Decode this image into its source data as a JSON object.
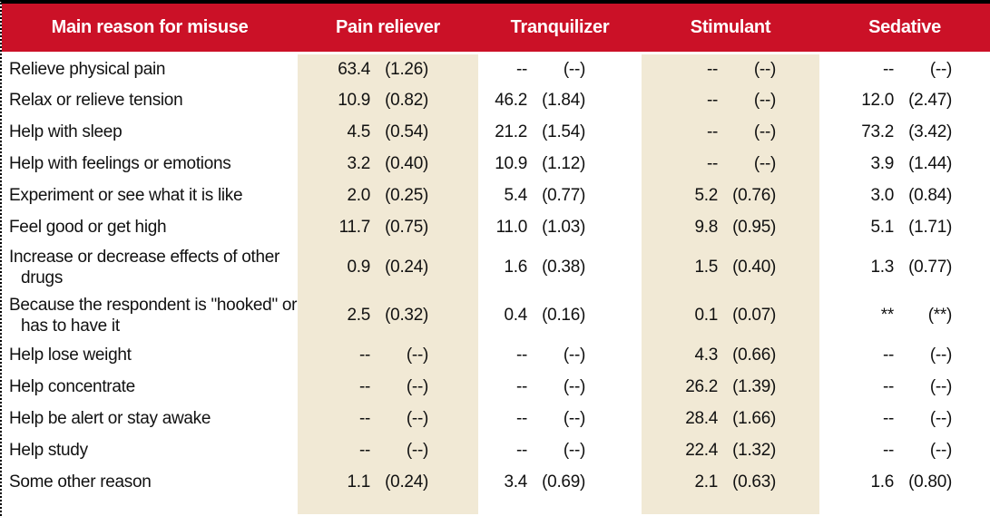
{
  "table": {
    "corner_header": "Main reason for misuse",
    "columns": [
      "Pain reliever",
      "Tranquilizer",
      "Stimulant",
      "Sedative"
    ],
    "missing_marker": "--",
    "missing_se_marker": "(--)",
    "suppressed_marker": "**",
    "suppressed_se_marker": "(**)",
    "rows": [
      {
        "label": "Relieve physical pain",
        "values": [
          {
            "est": "63.4",
            "se": "(1.26)"
          },
          {
            "est": "--",
            "se": "(--)"
          },
          {
            "est": "--",
            "se": "(--)"
          },
          {
            "est": "--",
            "se": "(--)"
          }
        ]
      },
      {
        "label": "Relax or relieve tension",
        "values": [
          {
            "est": "10.9",
            "se": "(0.82)"
          },
          {
            "est": "46.2",
            "se": "(1.84)"
          },
          {
            "est": "--",
            "se": "(--)"
          },
          {
            "est": "12.0",
            "se": "(2.47)"
          }
        ]
      },
      {
        "label": "Help with sleep",
        "values": [
          {
            "est": "4.5",
            "se": "(0.54)"
          },
          {
            "est": "21.2",
            "se": "(1.54)"
          },
          {
            "est": "--",
            "se": "(--)"
          },
          {
            "est": "73.2",
            "se": "(3.42)"
          }
        ]
      },
      {
        "label": "Help with feelings or emotions",
        "values": [
          {
            "est": "3.2",
            "se": "(0.40)"
          },
          {
            "est": "10.9",
            "se": "(1.12)"
          },
          {
            "est": "--",
            "se": "(--)"
          },
          {
            "est": "3.9",
            "se": "(1.44)"
          }
        ]
      },
      {
        "label": "Experiment or see what it is like",
        "values": [
          {
            "est": "2.0",
            "se": "(0.25)"
          },
          {
            "est": "5.4",
            "se": "(0.77)"
          },
          {
            "est": "5.2",
            "se": "(0.76)"
          },
          {
            "est": "3.0",
            "se": "(0.84)"
          }
        ]
      },
      {
        "label": "Feel good or get high",
        "values": [
          {
            "est": "11.7",
            "se": "(0.75)"
          },
          {
            "est": "11.0",
            "se": "(1.03)"
          },
          {
            "est": "9.8",
            "se": "(0.95)"
          },
          {
            "est": "5.1",
            "se": "(1.71)"
          }
        ]
      },
      {
        "label": "Increase or decrease effects of other drugs",
        "values": [
          {
            "est": "0.9",
            "se": "(0.24)"
          },
          {
            "est": "1.6",
            "se": "(0.38)"
          },
          {
            "est": "1.5",
            "se": "(0.40)"
          },
          {
            "est": "1.3",
            "se": "(0.77)"
          }
        ]
      },
      {
        "label": "Because the respondent is \"hooked\" or has to have it",
        "values": [
          {
            "est": "2.5",
            "se": "(0.32)"
          },
          {
            "est": "0.4",
            "se": "(0.16)"
          },
          {
            "est": "0.1",
            "se": "(0.07)"
          },
          {
            "est": "**",
            "se": "(**)"
          }
        ]
      },
      {
        "label": "Help lose weight",
        "values": [
          {
            "est": "--",
            "se": "(--)"
          },
          {
            "est": "--",
            "se": "(--)"
          },
          {
            "est": "4.3",
            "se": "(0.66)"
          },
          {
            "est": "--",
            "se": "(--)"
          }
        ]
      },
      {
        "label": "Help concentrate",
        "values": [
          {
            "est": "--",
            "se": "(--)"
          },
          {
            "est": "--",
            "se": "(--)"
          },
          {
            "est": "26.2",
            "se": "(1.39)"
          },
          {
            "est": "--",
            "se": "(--)"
          }
        ]
      },
      {
        "label": "Help be alert or stay awake",
        "values": [
          {
            "est": "--",
            "se": "(--)"
          },
          {
            "est": "--",
            "se": "(--)"
          },
          {
            "est": "28.4",
            "se": "(1.66)"
          },
          {
            "est": "--",
            "se": "(--)"
          }
        ]
      },
      {
        "label": "Help study",
        "values": [
          {
            "est": "--",
            "se": "(--)"
          },
          {
            "est": "--",
            "se": "(--)"
          },
          {
            "est": "22.4",
            "se": "(1.32)"
          },
          {
            "est": "--",
            "se": "(--)"
          }
        ]
      },
      {
        "label": "Some other reason",
        "values": [
          {
            "est": "1.1",
            "se": "(0.24)"
          },
          {
            "est": "3.4",
            "se": "(0.69)"
          },
          {
            "est": "2.1",
            "se": "(0.63)"
          },
          {
            "est": "1.6",
            "se": "(0.80)"
          }
        ]
      }
    ],
    "double_line_rows": [
      6,
      7
    ],
    "shaded_columns": [
      0,
      2
    ]
  },
  "colors": {
    "header_bg": "#cb1127",
    "header_text": "#ffffff",
    "band_bg": "#f1e9d5",
    "body_text": "#111111",
    "top_border": "#000000"
  }
}
